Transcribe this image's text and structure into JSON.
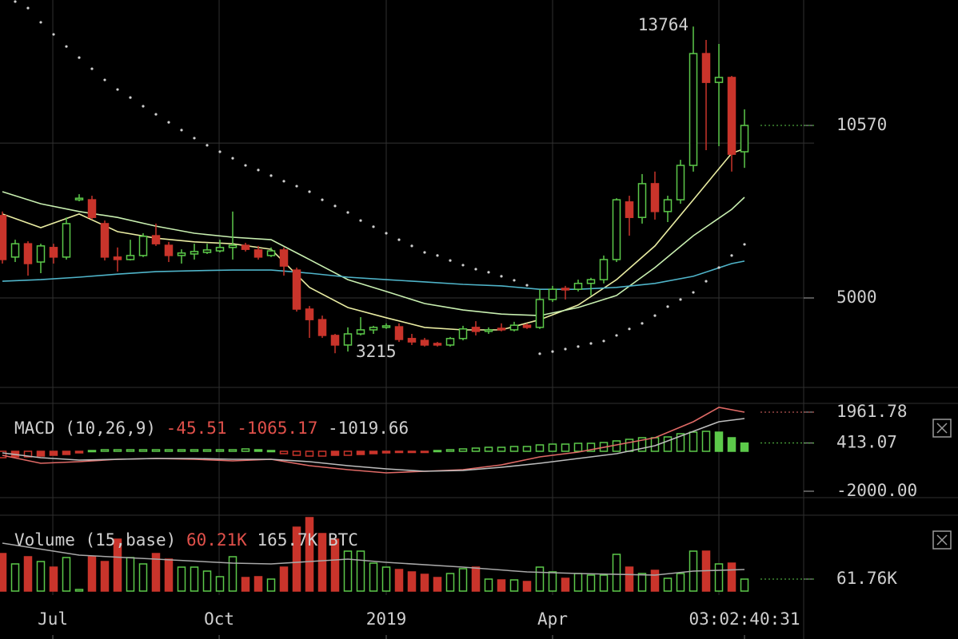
{
  "chart_data": [
    {
      "type": "candlestick",
      "open": [
        7660,
        6320,
        6750,
        6160,
        6630,
        6320,
        8170,
        8170,
        7400,
        6320,
        6240,
        6370,
        7010,
        6700,
        6370,
        6420,
        6470,
        6520,
        6630,
        6700,
        6550,
        6370,
        6550,
        5900,
        4640,
        4300,
        3790,
        3480,
        3840,
        3970,
        4050,
        4070,
        3690,
        3630,
        3530,
        3480,
        3690,
        4050,
        3920,
        4020,
        3970,
        4120,
        4050,
        4950,
        5310,
        5280,
        5470,
        5590,
        6240,
        8100,
        7600,
        8690,
        7790,
        8170,
        9280,
        12890,
        11960,
        12120,
        9720
      ],
      "high": [
        7790,
        6880,
        6830,
        6750,
        6750,
        7600,
        8350,
        8300,
        7500,
        6630,
        6880,
        7090,
        7400,
        6810,
        6570,
        6750,
        6750,
        6880,
        7790,
        6780,
        6680,
        6630,
        6630,
        5980,
        4740,
        4430,
        3840,
        4050,
        4380,
        4100,
        4180,
        4180,
        3840,
        3710,
        3580,
        3740,
        4100,
        4250,
        4050,
        4180,
        4230,
        4180,
        5280,
        5390,
        5390,
        5590,
        5650,
        6370,
        8220,
        8300,
        9000,
        9080,
        8300,
        9460,
        13764,
        13330,
        13200,
        12170,
        11090
      ],
      "low": [
        6110,
        6160,
        5720,
        5800,
        6110,
        6240,
        8120,
        7530,
        6210,
        5850,
        6210,
        6320,
        6680,
        6160,
        6110,
        6240,
        6420,
        6470,
        6240,
        6500,
        6240,
        6320,
        5720,
        4560,
        3710,
        3710,
        3215,
        3270,
        3790,
        3840,
        4000,
        3580,
        3480,
        3430,
        3430,
        3430,
        3630,
        3790,
        3840,
        3920,
        3920,
        4000,
        4000,
        4870,
        4950,
        5210,
        5080,
        5470,
        6160,
        7010,
        7400,
        7530,
        7450,
        8040,
        9080,
        9770,
        9900,
        9080,
        9200
      ],
      "close": [
        6240,
        6750,
        6110,
        6680,
        6320,
        7400,
        8220,
        7600,
        6320,
        6240,
        6370,
        6990,
        6750,
        6370,
        6450,
        6500,
        6550,
        6630,
        6700,
        6570,
        6320,
        6520,
        6030,
        4640,
        4300,
        3790,
        3480,
        3840,
        3970,
        4050,
        4100,
        3660,
        3580,
        3480,
        3480,
        3690,
        4000,
        3920,
        3970,
        3970,
        4120,
        4050,
        4950,
        5280,
        5260,
        5470,
        5590,
        6240,
        8170,
        7600,
        8690,
        7790,
        8170,
        9280,
        12890,
        11960,
        12120,
        9640,
        10570
      ],
      "up_color": "#5cc94a",
      "down_color": "#c9342b",
      "overlays": [
        {
          "color": "#e9eca2",
          "x": [
            0,
            3,
            6,
            9,
            12,
            15,
            18,
            21,
            24,
            27,
            30,
            33,
            36,
            39,
            42,
            45,
            48,
            51,
            54,
            57,
            58
          ],
          "values": [
            7710,
            7270,
            7710,
            7140,
            6930,
            6810,
            6750,
            6570,
            5340,
            4690,
            4360,
            4050,
            3970,
            3970,
            4300,
            4770,
            5590,
            6680,
            8170,
            9670,
            9820
          ]
        },
        {
          "color": "#c8efb0",
          "x": [
            0,
            3,
            6,
            9,
            12,
            15,
            18,
            21,
            24,
            27,
            30,
            33,
            36,
            39,
            42,
            45,
            48,
            51,
            54,
            57,
            58
          ],
          "values": [
            8430,
            8040,
            7790,
            7600,
            7320,
            7090,
            6960,
            6880,
            6240,
            5590,
            5210,
            4820,
            4610,
            4480,
            4430,
            4690,
            5080,
            5980,
            7010,
            7860,
            8250
          ]
        },
        {
          "color": "#4fb4c9",
          "x": [
            0,
            3,
            6,
            9,
            12,
            15,
            18,
            21,
            24,
            27,
            30,
            33,
            36,
            39,
            42,
            45,
            48,
            51,
            54,
            57,
            58
          ],
          "values": [
            5540,
            5590,
            5670,
            5770,
            5850,
            5880,
            5900,
            5900,
            5800,
            5670,
            5590,
            5520,
            5440,
            5390,
            5280,
            5280,
            5340,
            5470,
            5700,
            6110,
            6190
          ]
        }
      ],
      "sar": [
        null,
        14570,
        14360,
        13900,
        13510,
        13120,
        12760,
        12400,
        12040,
        11730,
        11470,
        11190,
        10930,
        10670,
        10420,
        10160,
        9930,
        9720,
        9510,
        9280,
        9130,
        8950,
        8770,
        8610,
        8430,
        8170,
        7970,
        7760,
        7500,
        7300,
        7090,
        6880,
        6680,
        6470,
        6370,
        6210,
        6060,
        5930,
        5830,
        5700,
        5570,
        5410,
        3200,
        3270,
        3350,
        3430,
        3530,
        3610,
        3790,
        4000,
        4180,
        4430,
        4720,
        4950,
        5180,
        5540,
        5980,
        6370,
        6730
      ],
      "sar_color": "#cfcfcf",
      "ylim": [
        2112,
        14620
      ],
      "yticks": [
        10570,
        5000
      ],
      "ygrid": [
        10000,
        5000
      ],
      "xlim": [
        -0.1875,
        62.625
      ],
      "xticks": [
        {
          "value": 3.94,
          "label": "Jul"
        },
        {
          "value": 16.94,
          "label": "Oct"
        },
        {
          "value": 30,
          "label": "2019"
        },
        {
          "value": 43,
          "label": "Apr"
        }
      ],
      "xgrid": [
        3.94,
        16.94,
        30,
        43,
        56
      ],
      "countdown": "03:02:40:31"
    },
    {
      "type": "macd",
      "title": "MACD (10,26,9)",
      "legend_values": [
        -45.51,
        -1065.17,
        -1019.66
      ],
      "legend_colors": [
        "#e0504a",
        "#e0504a",
        "#cfcfcf"
      ],
      "histogram": [
        -320,
        -280,
        -280,
        -240,
        -200,
        -160,
        -80,
        40,
        80,
        80,
        80,
        80,
        80,
        80,
        80,
        80,
        80,
        80,
        80,
        120,
        80,
        40,
        -120,
        -200,
        -240,
        -240,
        -200,
        -200,
        -160,
        -120,
        -80,
        -40,
        -40,
        -40,
        40,
        80,
        120,
        160,
        200,
        200,
        240,
        240,
        320,
        360,
        360,
        400,
        400,
        440,
        520,
        600,
        680,
        680,
        720,
        880,
        960,
        1000,
        960,
        680,
        413.07
      ],
      "series": [
        {
          "color": "#e06a66",
          "x": [
            0,
            3,
            6,
            9,
            12,
            15,
            18,
            21,
            24,
            27,
            30,
            33,
            36,
            39,
            42,
            45,
            48,
            51,
            54,
            56,
            58
          ],
          "values": [
            -200,
            -600,
            -520,
            -400,
            -360,
            -400,
            -480,
            -400,
            -720,
            -920,
            -1080,
            -1000,
            -920,
            -680,
            -280,
            -40,
            320,
            680,
            1480,
            2200,
            1961.78
          ]
        },
        {
          "color": "#bdbdbd",
          "x": [
            0,
            3,
            6,
            9,
            12,
            15,
            18,
            21,
            24,
            27,
            30,
            33,
            36,
            39,
            42,
            45,
            48,
            51,
            54,
            56,
            58
          ],
          "values": [
            -80,
            -320,
            -440,
            -400,
            -360,
            -360,
            -400,
            -400,
            -520,
            -720,
            -880,
            -1000,
            -960,
            -800,
            -600,
            -360,
            -120,
            280,
            1000,
            1480,
            1640
          ]
        }
      ],
      "ylim": [
        -2320,
        3120
      ],
      "yticks": [
        1961.78,
        413.07,
        {
          "value": -2000,
          "label": "-2000.00"
        }
      ]
    },
    {
      "type": "volume",
      "title": "Volume (15,base)",
      "legend_texts": [
        "60.21K",
        "165.7K BTC"
      ],
      "legend_colors": [
        "#e0504a",
        "#cfcfcf"
      ],
      "values": [
        193600,
        140100,
        177200,
        152400,
        123600,
        173000,
        8200,
        177200,
        152400,
        267800,
        173000,
        140100,
        193600,
        164800,
        123600,
        123600,
        103000,
        74200,
        177200,
        70000,
        74200,
        61800,
        123600,
        329600,
        379000,
        296600,
        267800,
        206000,
        206000,
        144200,
        123600,
        111200,
        98900,
        86500,
        70000,
        90600,
        115400,
        123600,
        61800,
        57700,
        57700,
        49400,
        123600,
        98900,
        65900,
        90600,
        82400,
        82400,
        189500,
        123600,
        90600,
        107100,
        65900,
        90600,
        206000,
        206000,
        140100,
        144200,
        61760
      ],
      "ma": {
        "color": "#a8a8a8",
        "x": [
          0,
          6,
          12,
          18,
          21,
          27,
          30,
          36,
          41,
          45,
          51,
          54,
          58
        ],
        "values": [
          247200,
          185400,
          164800,
          144200,
          140100,
          164800,
          148300,
          123600,
          98900,
          90600,
          82400,
          103000,
          111200
        ]
      },
      "ylim": [
        0,
        391400
      ],
      "yticks": [
        {
          "value": 61760,
          "label": "61.76K"
        }
      ]
    }
  ]
}
